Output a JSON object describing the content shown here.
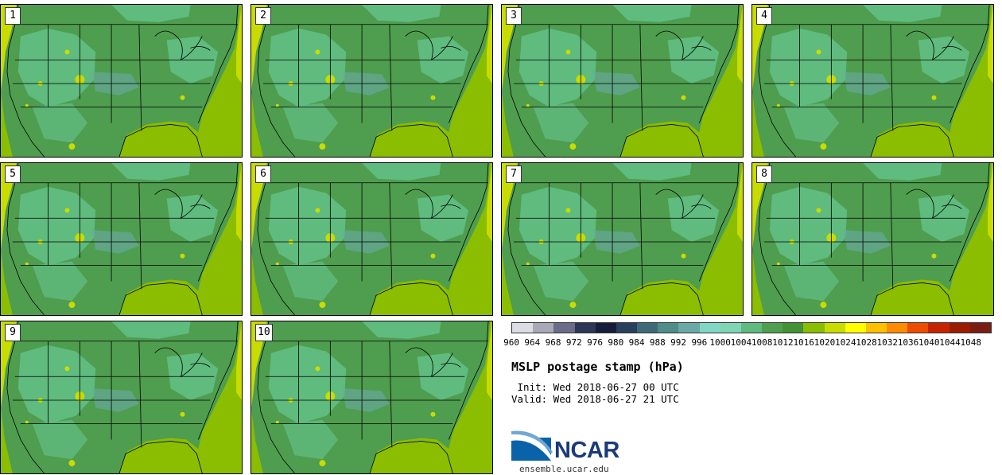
{
  "panels": [
    {
      "label": "1"
    },
    {
      "label": "2"
    },
    {
      "label": "3"
    },
    {
      "label": "4"
    },
    {
      "label": "5"
    },
    {
      "label": "6"
    },
    {
      "label": "7"
    },
    {
      "label": "8"
    },
    {
      "label": "9"
    },
    {
      "label": "10"
    }
  ],
  "colorbar": {
    "colors": [
      "#dcdce4",
      "#a8a8b8",
      "#6a6c88",
      "#2c3656",
      "#141e3c",
      "#27405e",
      "#3f6b78",
      "#4f8c8a",
      "#6aa9a6",
      "#80d8c4",
      "#7ed6b4",
      "#5fbb7e",
      "#4e9f4f",
      "#449236",
      "#8bbd00",
      "#c9dc00",
      "#ffff00",
      "#ffc000",
      "#ff8c00",
      "#ee4c00",
      "#c82300",
      "#9c1c00",
      "#7a1e12"
    ],
    "tick_labels": [
      "960",
      "964",
      "968",
      "972",
      "976",
      "980",
      "984",
      "988",
      "992",
      "996",
      "1000",
      "1004",
      "1008",
      "1012",
      "1016",
      "1020",
      "1024",
      "1028",
      "1032",
      "1036",
      "1040",
      "1044",
      "1048"
    ]
  },
  "title": "MSLP postage stamp (hPa)",
  "init": " Init: Wed 2018-06-27 00 UTC",
  "valid": "Valid: Wed 2018-06-27 21 UTC",
  "logo": {
    "text": "NCAR",
    "website": "ensemble.ucar.edu"
  }
}
